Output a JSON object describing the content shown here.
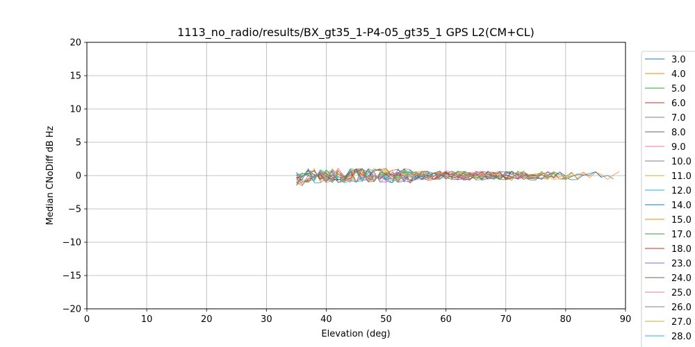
{
  "chart_data": {
    "type": "line",
    "title": "1113_no_radio/results/BX_gt35_1-P4-05_gt35_1 GPS L2(CM+CL)",
    "xlabel": "Elevation (deg)",
    "ylabel": "Median CNoDiff dB Hz",
    "xlim": [
      0,
      90
    ],
    "ylim": [
      -20,
      20
    ],
    "x_ticks": [
      "0",
      "10",
      "20",
      "30",
      "40",
      "50",
      "60",
      "70",
      "80",
      "90"
    ],
    "y_ticks": [
      "20",
      "15",
      "10",
      "5",
      "0",
      "−5",
      "−10",
      "−15",
      "−20"
    ],
    "grid": true,
    "legend_position": "right-outside",
    "series": [
      {
        "name": "3.0",
        "color": "#1f77b4",
        "x_range": [
          35,
          88
        ],
        "seed": 3
      },
      {
        "name": "4.0",
        "color": "#ff7f0e",
        "x_range": [
          35,
          89
        ],
        "seed": 4
      },
      {
        "name": "5.0",
        "color": "#2ca02c",
        "x_range": [
          35,
          82
        ],
        "seed": 5
      },
      {
        "name": "6.0",
        "color": "#d62728",
        "x_range": [
          35,
          80
        ],
        "seed": 6
      },
      {
        "name": "7.0",
        "color": "#9467bd",
        "x_range": [
          35,
          78
        ],
        "seed": 7
      },
      {
        "name": "8.0",
        "color": "#8c564b",
        "x_range": [
          35,
          75
        ],
        "seed": 8
      },
      {
        "name": "9.0",
        "color": "#e377c2",
        "x_range": [
          35,
          70
        ],
        "seed": 9
      },
      {
        "name": "10.0",
        "color": "#7f7f7f",
        "x_range": [
          35,
          72
        ],
        "seed": 10
      },
      {
        "name": "11.0",
        "color": "#bcbd22",
        "x_range": [
          35,
          66
        ],
        "seed": 11
      },
      {
        "name": "12.0",
        "color": "#17becf",
        "x_range": [
          35,
          60
        ],
        "seed": 12
      },
      {
        "name": "14.0",
        "color": "#1f77b4",
        "x_range": [
          35,
          86
        ],
        "seed": 14
      },
      {
        "name": "15.0",
        "color": "#ff7f0e",
        "x_range": [
          35,
          84
        ],
        "seed": 15
      },
      {
        "name": "17.0",
        "color": "#2ca02c",
        "x_range": [
          35,
          79
        ],
        "seed": 17
      },
      {
        "name": "18.0",
        "color": "#d62728",
        "x_range": [
          35,
          77
        ],
        "seed": 18
      },
      {
        "name": "23.0",
        "color": "#9467bd",
        "x_range": [
          35,
          74
        ],
        "seed": 23
      },
      {
        "name": "24.0",
        "color": "#8c564b",
        "x_range": [
          35,
          71
        ],
        "seed": 24
      },
      {
        "name": "25.0",
        "color": "#e377c2",
        "x_range": [
          35,
          68
        ],
        "seed": 25
      },
      {
        "name": "26.0",
        "color": "#7f7f7f",
        "x_range": [
          35,
          73
        ],
        "seed": 26
      },
      {
        "name": "27.0",
        "color": "#bcbd22",
        "x_range": [
          35,
          81
        ],
        "seed": 27
      },
      {
        "name": "28.0",
        "color": "#17becf",
        "x_range": [
          35,
          58
        ],
        "seed": 28
      }
    ]
  }
}
